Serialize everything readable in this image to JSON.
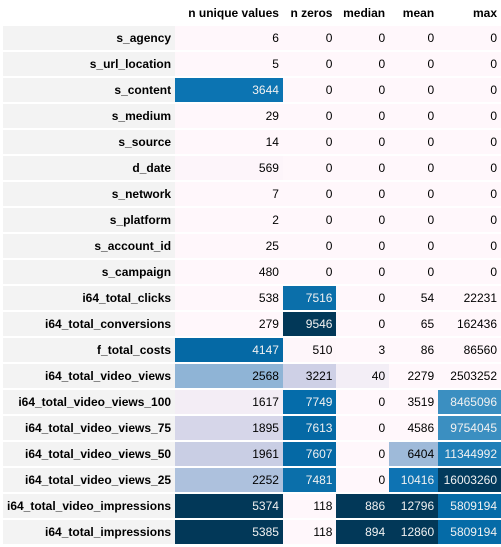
{
  "columns": [
    "n unique values",
    "n zeros",
    "median",
    "mean",
    "max"
  ],
  "rows": [
    {
      "name": "s_agency",
      "values": [
        "6",
        "0",
        "0",
        "0",
        "0"
      ]
    },
    {
      "name": "s_url_location",
      "values": [
        "5",
        "0",
        "0",
        "0",
        "0"
      ]
    },
    {
      "name": "s_content",
      "values": [
        "3644",
        "0",
        "0",
        "0",
        "0"
      ]
    },
    {
      "name": "s_medium",
      "values": [
        "29",
        "0",
        "0",
        "0",
        "0"
      ]
    },
    {
      "name": "s_source",
      "values": [
        "14",
        "0",
        "0",
        "0",
        "0"
      ]
    },
    {
      "name": "d_date",
      "values": [
        "569",
        "0",
        "0",
        "0",
        "0"
      ]
    },
    {
      "name": "s_network",
      "values": [
        "7",
        "0",
        "0",
        "0",
        "0"
      ]
    },
    {
      "name": "s_platform",
      "values": [
        "2",
        "0",
        "0",
        "0",
        "0"
      ]
    },
    {
      "name": "s_account_id",
      "values": [
        "25",
        "0",
        "0",
        "0",
        "0"
      ]
    },
    {
      "name": "s_campaign",
      "values": [
        "480",
        "0",
        "0",
        "0",
        "0"
      ]
    },
    {
      "name": "i64_total_clicks",
      "values": [
        "538",
        "7516",
        "0",
        "54",
        "22231"
      ]
    },
    {
      "name": "i64_total_conversions",
      "values": [
        "279",
        "9546",
        "0",
        "65",
        "162436"
      ]
    },
    {
      "name": "f_total_costs",
      "values": [
        "4147",
        "510",
        "3",
        "86",
        "86560"
      ]
    },
    {
      "name": "i64_total_video_views",
      "values": [
        "2568",
        "3221",
        "40",
        "2279",
        "2503252"
      ]
    },
    {
      "name": "i64_total_video_views_100",
      "values": [
        "1617",
        "7749",
        "0",
        "3519",
        "8465096"
      ]
    },
    {
      "name": "i64_total_video_views_75",
      "values": [
        "1895",
        "7613",
        "0",
        "4586",
        "9754045"
      ]
    },
    {
      "name": "i64_total_video_views_50",
      "values": [
        "1961",
        "7607",
        "0",
        "6404",
        "11344992"
      ]
    },
    {
      "name": "i64_total_video_views_25",
      "values": [
        "2252",
        "7481",
        "0",
        "10416",
        "16003260"
      ]
    },
    {
      "name": "i64_total_video_impressions",
      "values": [
        "5374",
        "118",
        "886",
        "12796",
        "5809194"
      ]
    },
    {
      "name": "i64_total_impressions",
      "values": [
        "5385",
        "118",
        "894",
        "12860",
        "5809194"
      ]
    }
  ],
  "cell_colors": [
    [
      "#fff7fb",
      "#fff7fb",
      "#fff7fb",
      "#fff7fb",
      "#fff7fb"
    ],
    [
      "#fff7fb",
      "#fff7fb",
      "#fff7fb",
      "#fff7fb",
      "#fff7fb"
    ],
    [
      "#0c74b2",
      "#fff7fb",
      "#fff7fb",
      "#fff7fb",
      "#fff7fb"
    ],
    [
      "#fff7fb",
      "#fff7fb",
      "#fff7fb",
      "#fff7fb",
      "#fff7fb"
    ],
    [
      "#fff7fb",
      "#fff7fb",
      "#fff7fb",
      "#fff7fb",
      "#fff7fb"
    ],
    [
      "#fdf5fa",
      "#fff7fb",
      "#fff7fb",
      "#fff7fb",
      "#fff7fb"
    ],
    [
      "#fff7fb",
      "#fff7fb",
      "#fff7fb",
      "#fff7fb",
      "#fff7fb"
    ],
    [
      "#fff7fb",
      "#fff7fb",
      "#fff7fb",
      "#fff7fb",
      "#fff7fb"
    ],
    [
      "#fff7fb",
      "#fff7fb",
      "#fff7fb",
      "#fff7fb",
      "#fff7fb"
    ],
    [
      "#fff7fb",
      "#fff7fb",
      "#fff7fb",
      "#fff7fb",
      "#fff7fb"
    ],
    [
      "#fff7fb",
      "#0b6faa",
      "#fff7fb",
      "#fff7fb",
      "#fff7fb"
    ],
    [
      "#fff7fb",
      "#023858",
      "#fff7fb",
      "#fff7fb",
      "#fff7fb"
    ],
    [
      "#0569a5",
      "#fef6fa",
      "#fff7fb",
      "#fff7fb",
      "#fff7fb"
    ],
    [
      "#8fb4d6",
      "#ced0e6",
      "#f3eef6",
      "#fff7fb",
      "#fff7fb"
    ],
    [
      "#f3edf5",
      "#056caa",
      "#fff7fb",
      "#fff7fb",
      "#3b8fc1"
    ],
    [
      "#d6d6e9",
      "#0569a5",
      "#fff7fb",
      "#fff7fb",
      "#3b8fc1"
    ],
    [
      "#c9cee4",
      "#0569a5",
      "#fff7fb",
      "#9ebad9",
      "#1f7fb8"
    ],
    [
      "#adc1dd",
      "#0b6faa",
      "#fff7fb",
      "#0e73b3",
      "#023a5c"
    ],
    [
      "#023858",
      "#fff7fb",
      "#023858",
      "#023858",
      "#056ba7"
    ],
    [
      "#023858",
      "#fff7fb",
      "#023858",
      "#023858",
      "#056ba7"
    ]
  ]
}
